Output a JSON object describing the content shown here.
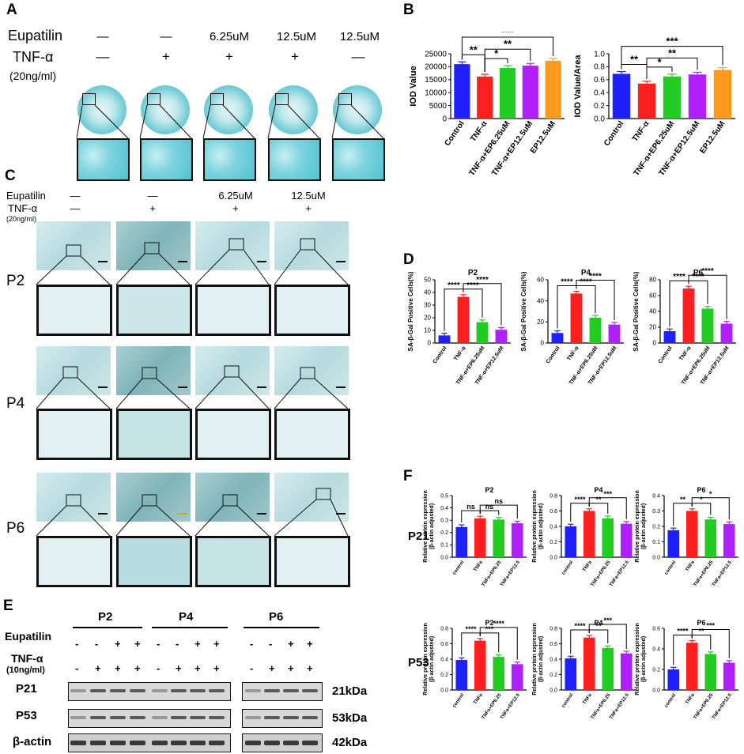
{
  "panels": {
    "A": "A",
    "B": "B",
    "C": "C",
    "D": "D",
    "E": "E",
    "F": "F"
  },
  "panelA": {
    "row1_label": "Eupatilin",
    "row2_label": "TNF-α",
    "row3_label": "(20ng/ml)",
    "eupatilin": [
      "—",
      "—",
      "6.25uM",
      "12.5uM",
      "12.5uM"
    ],
    "tnf": [
      "—",
      "+",
      "+",
      "+",
      "—"
    ]
  },
  "panelC": {
    "row1_label": "Eupatilin",
    "row2_label": "TNF-α",
    "row3_label": "(20ng/ml)",
    "eupatilin": [
      "—",
      "—",
      "6.25uM",
      "12.5uM"
    ],
    "tnf": [
      "—",
      "+",
      "+",
      "+"
    ],
    "passages": [
      "P2",
      "P4",
      "P6"
    ]
  },
  "panelE": {
    "passages": [
      "P2",
      "P4",
      "P6"
    ],
    "row1_label": "Eupatilin",
    "row2_label": "TNF-α",
    "row3_label": "(10ng/ml)",
    "eupatilin": [
      "-",
      "-",
      "+",
      "+",
      "-",
      "-",
      "+",
      "+",
      "-",
      "-",
      "+",
      "+"
    ],
    "tnf": [
      "-",
      "+",
      "+",
      "+",
      "-",
      "+",
      "+",
      "+",
      "-",
      "+",
      "+",
      "+"
    ],
    "proteins": [
      "P21",
      "P53",
      "β-actin"
    ],
    "weights": [
      "21kDa",
      "53kDa",
      "42kDa"
    ]
  },
  "panelF_rows": [
    "P21",
    "P53"
  ],
  "chart_data": [
    {
      "id": "B1",
      "type": "bar",
      "ylabel": "IOD Value",
      "ylim": [
        0,
        25000
      ],
      "yticks": [
        "0",
        "5000",
        "10000",
        "15000",
        "20000",
        "25000"
      ],
      "categories": [
        "Control",
        "TNF-α",
        "TNF-α+EP6.25uM",
        "TNF-α+EP12.5uM",
        "EP12.5uM"
      ],
      "values": [
        21000,
        16200,
        19500,
        20400,
        22300
      ],
      "colors": [
        "#1f1fff",
        "#ff1f1f",
        "#22cc22",
        "#b01fff",
        "#ff9a1f"
      ],
      "sig": [
        "**",
        "*",
        "**",
        "***"
      ]
    },
    {
      "id": "B2",
      "type": "bar",
      "ylabel": "IOD Value/Area",
      "ylim": [
        0,
        1.0
      ],
      "yticks": [
        "0.0",
        "0.2",
        "0.4",
        "0.6",
        "0.8",
        "1.0"
      ],
      "categories": [
        "Control",
        "TNF-α",
        "TNF-α+EP6.25uM",
        "TNF-α+EP12.5uM",
        "EP12.5uM"
      ],
      "values": [
        0.69,
        0.54,
        0.65,
        0.68,
        0.75
      ],
      "colors": [
        "#1f1fff",
        "#ff1f1f",
        "#22cc22",
        "#b01fff",
        "#ff9a1f"
      ],
      "sig": [
        "**",
        "*",
        "**",
        "***"
      ]
    },
    {
      "id": "D1",
      "type": "bar",
      "title": "P2",
      "ylabel": "SA-β-Gal Positive Cells(%)",
      "ylim": [
        0,
        50
      ],
      "yticks": [
        "0",
        "10",
        "20",
        "30",
        "40",
        "50"
      ],
      "categories": [
        "Control",
        "TNF-α",
        "TNF-α+EP6.25uM",
        "TNF-α+EP12.5uM"
      ],
      "values": [
        6,
        36.5,
        16.5,
        10.5
      ],
      "colors": [
        "#1f1fff",
        "#ff1f1f",
        "#22cc22",
        "#b01fff"
      ],
      "sig": [
        "****",
        "****",
        "****"
      ]
    },
    {
      "id": "D2",
      "type": "bar",
      "title": "P4",
      "ylabel": "SA-β-Gal Positive Cells(%)",
      "ylim": [
        0,
        60
      ],
      "yticks": [
        "0",
        "20",
        "40",
        "60"
      ],
      "categories": [
        "Control",
        "TNF-α",
        "TNF-α+EP6.25uM",
        "TNF-α+EP12.5uM"
      ],
      "values": [
        9.5,
        47,
        24,
        17.5
      ],
      "colors": [
        "#1f1fff",
        "#ff1f1f",
        "#22cc22",
        "#b01fff"
      ],
      "sig": [
        "****",
        "****",
        "****"
      ]
    },
    {
      "id": "D3",
      "type": "bar",
      "title": "P6",
      "ylabel": "SA-β-Gal Positive Cells(%)",
      "ylim": [
        0,
        80
      ],
      "yticks": [
        "0",
        "20",
        "40",
        "60",
        "80"
      ],
      "categories": [
        "Control",
        "TNF-α",
        "TNF-α+EP6.25uM",
        "TNF-α+EP12.5uM"
      ],
      "values": [
        15,
        69,
        43.5,
        24.5
      ],
      "colors": [
        "#1f1fff",
        "#ff1f1f",
        "#22cc22",
        "#b01fff"
      ],
      "sig": [
        "****",
        "****",
        "****"
      ]
    },
    {
      "id": "F1",
      "type": "bar",
      "title": "P2",
      "ylabel": "Relative protein expression",
      "ylabel2": "(β-actin adjusted)",
      "ylim": [
        0,
        0.5
      ],
      "yticks": [
        "0.0",
        "0.1",
        "0.2",
        "0.3",
        "0.4",
        "0.5"
      ],
      "categories": [
        "control",
        "TNFa",
        "TNFa+EP6.25",
        "TNFa+EP12.5"
      ],
      "values": [
        0.245,
        0.315,
        0.305,
        0.275
      ],
      "colors": [
        "#1f1fff",
        "#ff1f1f",
        "#22cc22",
        "#b01fff"
      ],
      "sig": [
        "ns",
        "ns",
        "ns"
      ]
    },
    {
      "id": "F2",
      "type": "bar",
      "title": "P4",
      "ylabel": "Relative protein expression",
      "ylabel2": "(β-actin adjusted)",
      "ylim": [
        0,
        0.8
      ],
      "yticks": [
        "0.0",
        "0.2",
        "0.4",
        "0.6",
        "0.8"
      ],
      "categories": [
        "control",
        "TNFa",
        "TNFa+EP6.25",
        "TNFa+EP12.5"
      ],
      "values": [
        0.4,
        0.6,
        0.505,
        0.435
      ],
      "colors": [
        "#1f1fff",
        "#ff1f1f",
        "#22cc22",
        "#b01fff"
      ],
      "sig": [
        "****",
        "**",
        "***"
      ]
    },
    {
      "id": "F3",
      "type": "bar",
      "title": "P6",
      "ylabel": "Relative protein expression",
      "ylabel2": "(β-actin adjusted)",
      "ylim": [
        0,
        0.4
      ],
      "yticks": [
        "0.0",
        "0.1",
        "0.2",
        "0.3",
        "0.4"
      ],
      "categories": [
        "control",
        "TNFa",
        "TNFa+EP6.25",
        "TNFa+EP12.5"
      ],
      "values": [
        0.175,
        0.3,
        0.245,
        0.215
      ],
      "colors": [
        "#1f1fff",
        "#ff1f1f",
        "#22cc22",
        "#b01fff"
      ],
      "sig": [
        "**",
        "*",
        "*"
      ]
    },
    {
      "id": "F4",
      "type": "bar",
      "title": "P2",
      "ylabel": "Relative protein expression",
      "ylabel2": "(β-actin adjusted)",
      "ylim": [
        0,
        0.8
      ],
      "yticks": [
        "0.0",
        "0.2",
        "0.4",
        "0.6",
        "0.8"
      ],
      "categories": [
        "control",
        "TNFa",
        "TNFa+EP6.25",
        "TNFa+EP12.5"
      ],
      "values": [
        0.39,
        0.64,
        0.43,
        0.335
      ],
      "colors": [
        "#1f1fff",
        "#ff1f1f",
        "#22cc22",
        "#b01fff"
      ],
      "sig": [
        "****",
        "***",
        "****"
      ]
    },
    {
      "id": "F5",
      "type": "bar",
      "title": "P4",
      "ylabel": "Relative protein expression",
      "ylabel2": "(β-actin adjusted)",
      "ylim": [
        0,
        0.8
      ],
      "yticks": [
        "0.0",
        "0.2",
        "0.4",
        "0.6",
        "0.8"
      ],
      "categories": [
        "control",
        "TNFa",
        "TNFa+EP6.25",
        "TNFa+EP12.5"
      ],
      "values": [
        0.41,
        0.68,
        0.545,
        0.475
      ],
      "colors": [
        "#1f1fff",
        "#ff1f1f",
        "#22cc22",
        "#b01fff"
      ],
      "sig": [
        "****",
        "**",
        "***"
      ]
    },
    {
      "id": "F6",
      "type": "bar",
      "title": "P6",
      "ylabel": "Relative protein expression",
      "ylabel2": "(β-actin adjusted)",
      "ylim": [
        0,
        0.6
      ],
      "yticks": [
        "0.0",
        "0.2",
        "0.4",
        "0.6"
      ],
      "categories": [
        "control",
        "TNFa",
        "TNFa+EP6.25",
        "TNFa+EP12.5"
      ],
      "values": [
        0.2,
        0.46,
        0.35,
        0.265
      ],
      "colors": [
        "#1f1fff",
        "#ff1f1f",
        "#22cc22",
        "#b01fff"
      ],
      "sig": [
        "****",
        "**",
        "***"
      ]
    }
  ]
}
